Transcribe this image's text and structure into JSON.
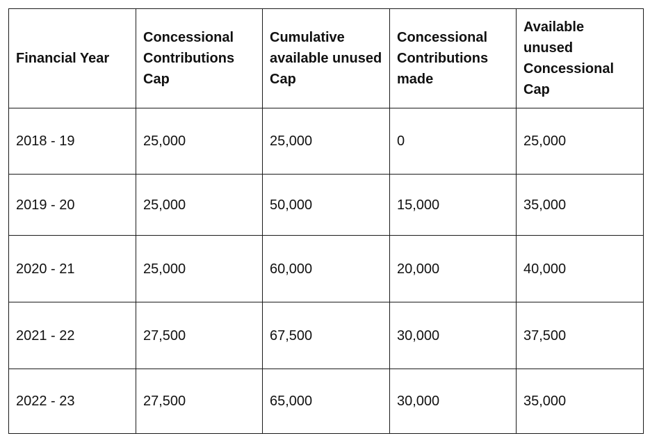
{
  "table": {
    "headers": [
      "Financial Year",
      "Concessional Contributions Cap",
      "Cumulative available unused Cap",
      "Concessional Contributions made",
      "Available unused Concessional Cap"
    ],
    "rows": [
      [
        "2018 - 19",
        "25,000",
        "25,000",
        "0",
        "25,000"
      ],
      [
        "2019 - 20",
        "25,000",
        "50,000",
        "15,000",
        "35,000"
      ],
      [
        "2020 - 21",
        "25,000",
        "60,000",
        "20,000",
        "40,000"
      ],
      [
        "2021 - 22",
        "27,500",
        "67,500",
        "30,000",
        "37,500"
      ],
      [
        "2022 - 23",
        "27,500",
        "65,000",
        "30,000",
        "35,000"
      ]
    ]
  }
}
